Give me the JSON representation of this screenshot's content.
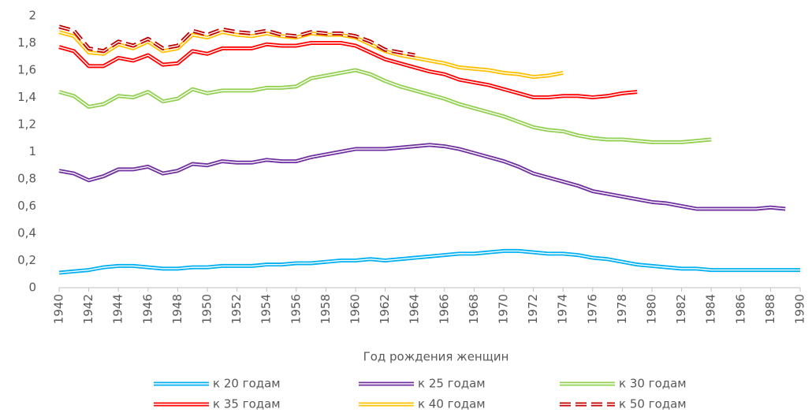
{
  "chart_data": {
    "type": "line",
    "line_style": "double",
    "x_label": "Год рождения женщин",
    "x": [
      1940,
      1941,
      1942,
      1943,
      1944,
      1945,
      1946,
      1947,
      1948,
      1949,
      1950,
      1951,
      1952,
      1953,
      1954,
      1955,
      1956,
      1957,
      1958,
      1959,
      1960,
      1961,
      1962,
      1963,
      1964,
      1965,
      1966,
      1967,
      1968,
      1969,
      1970,
      1971,
      1972,
      1973,
      1974,
      1975,
      1976,
      1977,
      1978,
      1979,
      1980,
      1981,
      1982,
      1983,
      1984,
      1985,
      1986,
      1987,
      1988,
      1989,
      1990
    ],
    "xlim": [
      1940,
      1990
    ],
    "xticks": [
      1940,
      1942,
      1944,
      1946,
      1948,
      1950,
      1952,
      1954,
      1956,
      1958,
      1960,
      1962,
      1964,
      1966,
      1968,
      1970,
      1972,
      1974,
      1976,
      1978,
      1980,
      1982,
      1984,
      1986,
      1988,
      1990
    ],
    "ylim": [
      0,
      2
    ],
    "yticks": [
      0,
      {
        "value": 0.2,
        "label": "0,2"
      },
      {
        "value": 0.4,
        "label": "0,4"
      },
      {
        "value": 0.6,
        "label": "0,6"
      },
      {
        "value": 0.8,
        "label": "0,8"
      },
      1,
      {
        "value": 1.2,
        "label": "1,2"
      },
      {
        "value": 1.4,
        "label": "1,4"
      },
      {
        "value": 1.6,
        "label": "1,6"
      },
      {
        "value": 1.8,
        "label": "1,8"
      },
      2
    ],
    "grid": false,
    "legend": "bottom",
    "series": [
      {
        "name": "к 20 годам",
        "color": "#00b0f0",
        "dashed": false,
        "values": [
          0.11,
          0.12,
          0.13,
          0.15,
          0.16,
          0.16,
          0.15,
          0.14,
          0.14,
          0.15,
          0.15,
          0.16,
          0.16,
          0.16,
          0.17,
          0.17,
          0.18,
          0.18,
          0.19,
          0.2,
          0.2,
          0.21,
          0.2,
          0.21,
          0.22,
          0.23,
          0.24,
          0.25,
          0.25,
          0.26,
          0.27,
          0.27,
          0.26,
          0.25,
          0.25,
          0.24,
          0.22,
          0.21,
          0.19,
          0.17,
          0.16,
          0.15,
          0.14,
          0.14,
          0.13,
          0.13,
          0.13,
          0.13,
          0.13,
          0.13,
          0.13
        ]
      },
      {
        "name": "к 25 годам",
        "color": "#7030a0",
        "dashed": false,
        "values": [
          0.86,
          0.84,
          0.79,
          0.82,
          0.87,
          0.87,
          0.89,
          0.84,
          0.86,
          0.91,
          0.9,
          0.93,
          0.92,
          0.92,
          0.94,
          0.93,
          0.93,
          0.96,
          0.98,
          1.0,
          1.02,
          1.02,
          1.02,
          1.03,
          1.04,
          1.05,
          1.04,
          1.02,
          0.99,
          0.96,
          0.93,
          0.89,
          0.84,
          0.81,
          0.78,
          0.75,
          0.71,
          0.69,
          0.67,
          0.65,
          0.63,
          0.62,
          0.6,
          0.58,
          0.58,
          0.58,
          0.58,
          0.58,
          0.59,
          0.58,
          null
        ]
      },
      {
        "name": "к 30 годам",
        "color": "#92d050",
        "dashed": false,
        "values": [
          1.44,
          1.41,
          1.33,
          1.35,
          1.41,
          1.4,
          1.44,
          1.37,
          1.39,
          1.46,
          1.43,
          1.45,
          1.45,
          1.45,
          1.47,
          1.47,
          1.48,
          1.54,
          1.56,
          1.58,
          1.6,
          1.57,
          1.52,
          1.48,
          1.45,
          1.42,
          1.39,
          1.35,
          1.32,
          1.29,
          1.26,
          1.22,
          1.18,
          1.16,
          1.15,
          1.12,
          1.1,
          1.09,
          1.09,
          1.08,
          1.07,
          1.07,
          1.07,
          1.08,
          1.09,
          null,
          null,
          null,
          null,
          null,
          null
        ]
      },
      {
        "name": "к 35 годам",
        "color": "#ff0000",
        "dashed": false,
        "values": [
          1.77,
          1.74,
          1.63,
          1.63,
          1.69,
          1.67,
          1.71,
          1.64,
          1.65,
          1.74,
          1.72,
          1.76,
          1.76,
          1.76,
          1.79,
          1.78,
          1.78,
          1.8,
          1.8,
          1.8,
          1.78,
          1.73,
          1.68,
          1.65,
          1.62,
          1.59,
          1.57,
          1.53,
          1.51,
          1.49,
          1.46,
          1.43,
          1.4,
          1.4,
          1.41,
          1.41,
          1.4,
          1.41,
          1.43,
          1.44,
          null,
          null,
          null,
          null,
          null,
          null,
          null,
          null,
          null,
          null,
          null
        ]
      },
      {
        "name": "к 40 годам",
        "color": "#ffc000",
        "dashed": false,
        "values": [
          1.88,
          1.85,
          1.73,
          1.72,
          1.79,
          1.76,
          1.81,
          1.74,
          1.76,
          1.86,
          1.84,
          1.88,
          1.86,
          1.85,
          1.87,
          1.85,
          1.84,
          1.87,
          1.86,
          1.86,
          1.84,
          1.79,
          1.74,
          1.71,
          1.69,
          1.67,
          1.65,
          1.62,
          1.61,
          1.6,
          1.58,
          1.57,
          1.55,
          1.56,
          1.58,
          null,
          null,
          null,
          null,
          null,
          null,
          null,
          null,
          null,
          null,
          null,
          null,
          null,
          null,
          null,
          null
        ]
      },
      {
        "name": "к 50 годам",
        "color": "#c00000",
        "dashed": true,
        "values": [
          1.92,
          1.89,
          1.76,
          1.74,
          1.81,
          1.78,
          1.83,
          1.76,
          1.78,
          1.89,
          1.86,
          1.9,
          1.88,
          1.87,
          1.89,
          1.86,
          1.85,
          1.88,
          1.87,
          1.87,
          1.85,
          1.81,
          1.75,
          1.73,
          1.71,
          null,
          null,
          null,
          null,
          null,
          null,
          null,
          null,
          null,
          null,
          null,
          null,
          null,
          null,
          null,
          null,
          null,
          null,
          null,
          null,
          null,
          null,
          null,
          null,
          null,
          null
        ]
      }
    ]
  }
}
